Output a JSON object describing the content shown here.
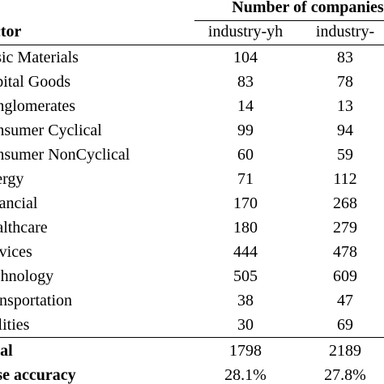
{
  "table": {
    "group_header": "Number of companies",
    "columns": {
      "sector": "Sector",
      "industry_yh": "industry-yh",
      "industry_other": "industry-"
    },
    "rows": [
      {
        "sector": "Basic Materials",
        "yh": "104",
        "other": "83"
      },
      {
        "sector": "Capital Goods",
        "yh": "83",
        "other": "78"
      },
      {
        "sector": "Conglomerates",
        "yh": "14",
        "other": "13"
      },
      {
        "sector": "Consumer Cyclical",
        "yh": "99",
        "other": "94"
      },
      {
        "sector": "Consumer NonCyclical",
        "yh": "60",
        "other": "59"
      },
      {
        "sector": "Energy",
        "yh": "71",
        "other": "112"
      },
      {
        "sector": "Financial",
        "yh": "170",
        "other": "268"
      },
      {
        "sector": "Healthcare",
        "yh": "180",
        "other": "279"
      },
      {
        "sector": "Services",
        "yh": "444",
        "other": "478"
      },
      {
        "sector": "Technology",
        "yh": "505",
        "other": "609"
      },
      {
        "sector": "Transportation",
        "yh": "38",
        "other": "47"
      },
      {
        "sector": "Utilities",
        "yh": "30",
        "other": "69"
      }
    ],
    "total": {
      "label": "Total",
      "yh": "1798",
      "other": "2189"
    },
    "base_accuracy": {
      "label": "Base accuracy",
      "yh": "28.1%",
      "other": "27.8%"
    }
  }
}
